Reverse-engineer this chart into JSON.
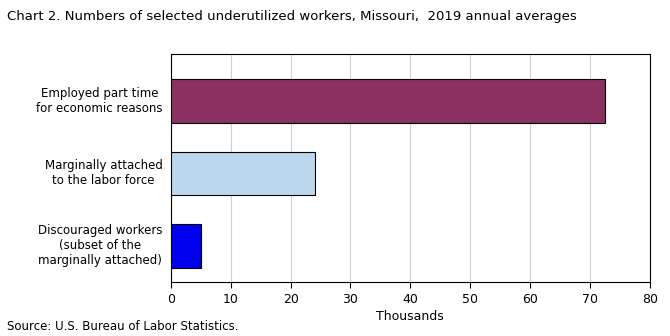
{
  "title": "Chart 2. Numbers of selected underutilized workers, Missouri,  2019 annual averages",
  "categories": [
    "Discouraged workers\n(subset of the\nmarginally attached)",
    "Marginally attached\nto the labor force",
    "Employed part time\nfor economic reasons"
  ],
  "values": [
    5.1,
    24.0,
    72.5
  ],
  "bar_colors": [
    "#0000EE",
    "#BDD7EE",
    "#8B3060"
  ],
  "bar_edgecolors": [
    "#000000",
    "#000000",
    "#000000"
  ],
  "xlabel": "Thousands",
  "xlim": [
    0,
    80
  ],
  "xticks": [
    0,
    10,
    20,
    30,
    40,
    50,
    60,
    70,
    80
  ],
  "source": "Source: U.S. Bureau of Labor Statistics.",
  "background_color": "#ffffff",
  "grid_color": "#d0d0d0",
  "title_fontsize": 9.5,
  "label_fontsize": 8.5,
  "tick_fontsize": 9,
  "source_fontsize": 8.5
}
